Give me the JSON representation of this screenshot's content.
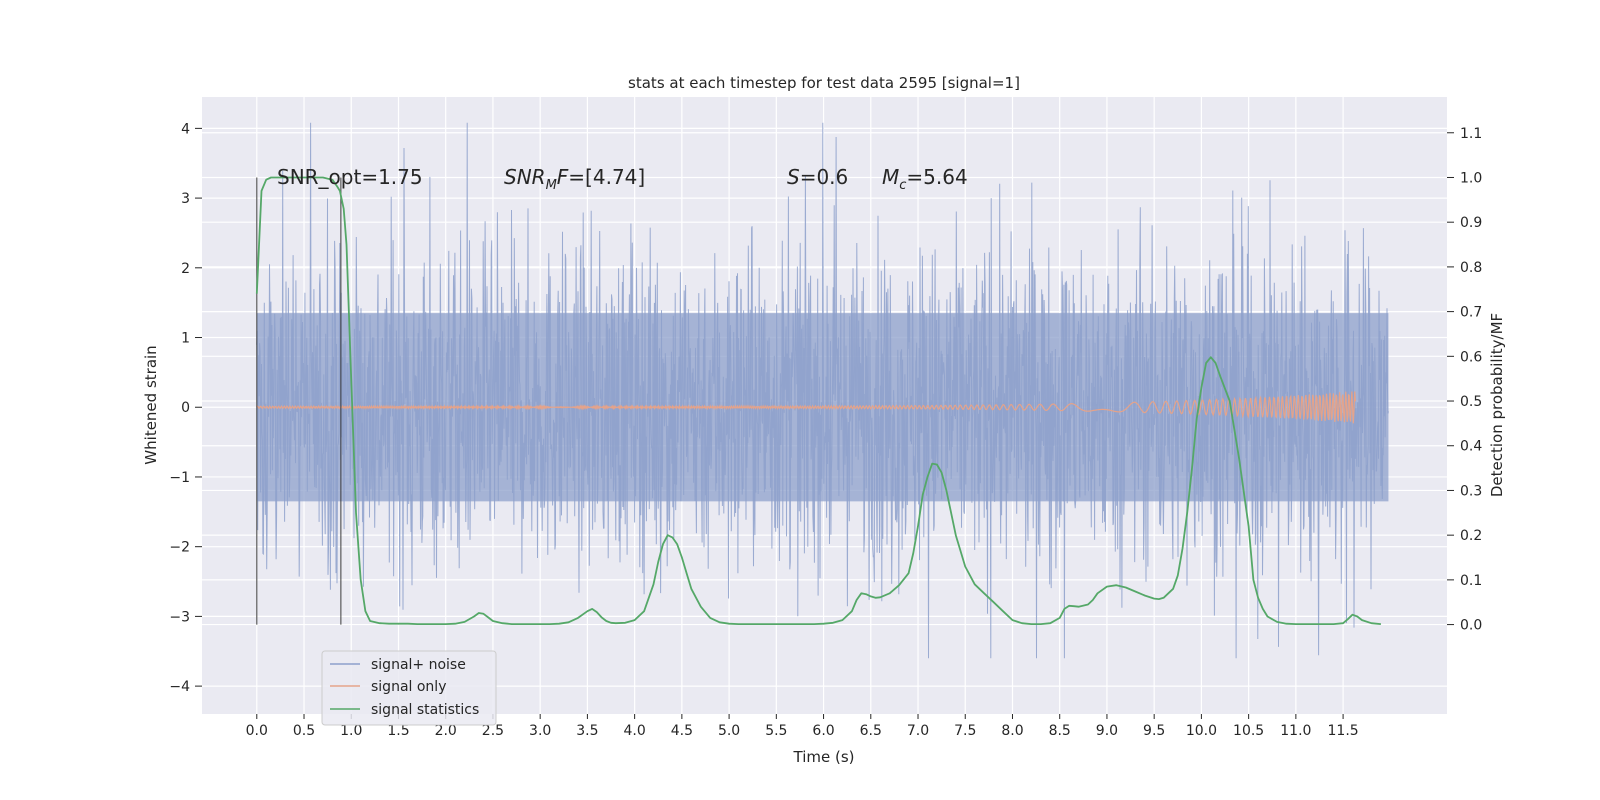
{
  "chart_data": {
    "type": "line",
    "title": "stats at each timestep for test data 2595 [signal=1]",
    "xlabel": "Time (s)",
    "ylabel": "Whitened strain",
    "ylabel_right": "Detection probability/MF",
    "xlim": [
      -0.58,
      12.6
    ],
    "ylim": [
      -4.4,
      4.45
    ],
    "ylim_right": [
      -0.2,
      1.18
    ],
    "x_ticks": [
      "0.0",
      "0.5",
      "1.0",
      "1.5",
      "2.0",
      "2.5",
      "3.0",
      "3.5",
      "4.0",
      "4.5",
      "5.0",
      "5.5",
      "6.0",
      "6.5",
      "7.0",
      "7.5",
      "8.0",
      "8.5",
      "9.0",
      "9.5",
      "10.0",
      "10.5",
      "11.0",
      "11.5"
    ],
    "y_ticks_left": [
      "4",
      "3",
      "2",
      "1",
      "0",
      "−1",
      "−2",
      "−3",
      "−4"
    ],
    "y_ticks_right": [
      "1.1",
      "1.0",
      "0.9",
      "0.8",
      "0.7",
      "0.6",
      "0.5",
      "0.4",
      "0.3",
      "0.2",
      "0.1",
      "0.0"
    ],
    "grid": true,
    "legend_position": "lower-left",
    "annotations": {
      "snr_opt": "SNR_opt=1.75",
      "snr_mf_label": "SNR",
      "snr_mf_sub": "M",
      "snr_mf_mid": "F",
      "snr_mf_value": "=[4.74]",
      "s_label": "S",
      "s_value": "=0.6",
      "mc_label": "M",
      "mc_sub": "c",
      "mc_value": "=5.64"
    },
    "vertical_markers": [
      0.0,
      0.89
    ],
    "series": [
      {
        "name": "signal+ noise",
        "color": "#8da0cb",
        "kind": "noise",
        "x_range": [
          0.0,
          11.98
        ],
        "typical_amplitude": 1.1,
        "peak_max": 4.08,
        "peak_min": -3.6
      },
      {
        "name": "signal only",
        "color": "#e5a38a",
        "kind": "chirp",
        "x_range": [
          0.0,
          11.63
        ],
        "end_amplitude": 0.22
      },
      {
        "name": "signal statistics",
        "color": "#55a868",
        "kind": "line",
        "axis": "right",
        "x": [
          0.0,
          0.05,
          0.1,
          0.15,
          0.2,
          0.3,
          0.4,
          0.5,
          0.6,
          0.7,
          0.8,
          0.85,
          0.88,
          0.92,
          0.95,
          1.0,
          1.05,
          1.1,
          1.15,
          1.2,
          1.3,
          1.4,
          1.5,
          1.6,
          1.7,
          1.8,
          1.9,
          2.0,
          2.1,
          2.2,
          2.3,
          2.35,
          2.4,
          2.45,
          2.5,
          2.6,
          2.7,
          2.8,
          2.9,
          3.0,
          3.1,
          3.2,
          3.3,
          3.4,
          3.5,
          3.55,
          3.6,
          3.65,
          3.7,
          3.75,
          3.8,
          3.9,
          4.0,
          4.1,
          4.2,
          4.25,
          4.3,
          4.35,
          4.4,
          4.45,
          4.5,
          4.55,
          4.6,
          4.7,
          4.8,
          4.9,
          5.0,
          5.1,
          5.2,
          5.3,
          5.4,
          5.5,
          5.6,
          5.7,
          5.8,
          5.9,
          6.0,
          6.1,
          6.2,
          6.3,
          6.35,
          6.4,
          6.45,
          6.5,
          6.55,
          6.6,
          6.7,
          6.8,
          6.9,
          6.95,
          7.0,
          7.05,
          7.1,
          7.15,
          7.2,
          7.25,
          7.3,
          7.35,
          7.4,
          7.5,
          7.6,
          7.7,
          7.8,
          7.9,
          8.0,
          8.1,
          8.2,
          8.3,
          8.4,
          8.5,
          8.55,
          8.6,
          8.65,
          8.7,
          8.8,
          8.85,
          8.9,
          9.0,
          9.1,
          9.2,
          9.3,
          9.4,
          9.5,
          9.55,
          9.6,
          9.7,
          9.75,
          9.8,
          9.85,
          9.9,
          9.95,
          10.0,
          10.05,
          10.1,
          10.15,
          10.2,
          10.3,
          10.4,
          10.5,
          10.55,
          10.6,
          10.65,
          10.7,
          10.8,
          10.9,
          11.0,
          11.1,
          11.2,
          11.3,
          11.4,
          11.5,
          11.55,
          11.6,
          11.65,
          11.7,
          11.8,
          11.9
        ],
        "values": [
          0.74,
          0.97,
          0.995,
          1.0,
          1.0,
          1.0,
          1.0,
          1.0,
          1.0,
          1.0,
          0.995,
          0.98,
          0.97,
          0.93,
          0.85,
          0.55,
          0.25,
          0.1,
          0.03,
          0.008,
          0.003,
          0.002,
          0.002,
          0.002,
          0.001,
          0.001,
          0.001,
          0.001,
          0.002,
          0.006,
          0.018,
          0.026,
          0.024,
          0.016,
          0.008,
          0.003,
          0.001,
          0.001,
          0.001,
          0.001,
          0.001,
          0.002,
          0.005,
          0.015,
          0.03,
          0.035,
          0.028,
          0.016,
          0.008,
          0.004,
          0.003,
          0.004,
          0.01,
          0.03,
          0.09,
          0.14,
          0.18,
          0.2,
          0.195,
          0.18,
          0.15,
          0.115,
          0.08,
          0.04,
          0.015,
          0.005,
          0.002,
          0.001,
          0.001,
          0.001,
          0.001,
          0.001,
          0.001,
          0.001,
          0.001,
          0.001,
          0.002,
          0.004,
          0.01,
          0.03,
          0.055,
          0.07,
          0.068,
          0.063,
          0.06,
          0.061,
          0.07,
          0.088,
          0.115,
          0.16,
          0.22,
          0.29,
          0.33,
          0.36,
          0.358,
          0.34,
          0.3,
          0.25,
          0.2,
          0.13,
          0.09,
          0.07,
          0.05,
          0.03,
          0.01,
          0.003,
          0.001,
          0.001,
          0.003,
          0.015,
          0.035,
          0.042,
          0.041,
          0.04,
          0.045,
          0.055,
          0.07,
          0.085,
          0.088,
          0.083,
          0.074,
          0.065,
          0.058,
          0.057,
          0.06,
          0.08,
          0.11,
          0.17,
          0.25,
          0.35,
          0.46,
          0.53,
          0.585,
          0.598,
          0.585,
          0.555,
          0.5,
          0.37,
          0.22,
          0.1,
          0.06,
          0.035,
          0.018,
          0.006,
          0.002,
          0.001,
          0.001,
          0.001,
          0.001,
          0.001,
          0.003,
          0.012,
          0.022,
          0.018,
          0.01,
          0.003,
          0.001
        ]
      }
    ]
  }
}
